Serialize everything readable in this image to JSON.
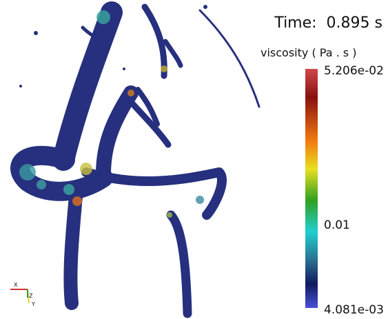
{
  "time_label": "Time:  0.895 s",
  "colorbar": {
    "title": "viscosity ( Pa . s )",
    "labels": [
      "5.206e-02",
      "0.01",
      "4.081e-03"
    ]
  },
  "orientation_axes": {
    "labels": [
      "X",
      "Z",
      "Y"
    ]
  }
}
